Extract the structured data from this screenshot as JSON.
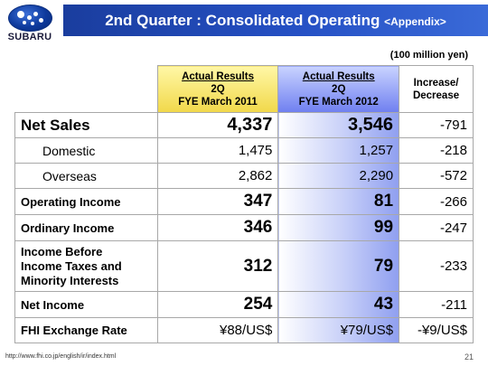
{
  "brand": {
    "name": "SUBARU",
    "logo_icon": "subaru-pleiades-logo",
    "logo_color": "#0e3a9c"
  },
  "header": {
    "title": "2nd Quarter : Consolidated Operating",
    "subtitle": "<Appendix>",
    "bg_color": "#2550c4"
  },
  "unit_note": "(100 million yen)",
  "table": {
    "columns": [
      {
        "line1": "Actual Results",
        "line2": "2Q",
        "line3": "FYE March 2011",
        "bg_color": "#f1d84a"
      },
      {
        "line1": "Actual Results",
        "line2": "2Q",
        "line3": "FYE March 2012",
        "bg_color": "#6f7ff0"
      },
      {
        "line1": "Increase/",
        "line2": "Decrease"
      }
    ],
    "rows": [
      {
        "label": "Net Sales",
        "v2011": "4,337",
        "v2012": "3,546",
        "change": "-791"
      },
      {
        "label": "Domestic",
        "v2011": "1,475",
        "v2012": "1,257",
        "change": "-218"
      },
      {
        "label": "Overseas",
        "v2011": "2,862",
        "v2012": "2,290",
        "change": "-572"
      },
      {
        "label": "Operating Income",
        "v2011": "347",
        "v2012": "81",
        "change": "-266"
      },
      {
        "label": "Ordinary Income",
        "v2011": "346",
        "v2012": "99",
        "change": "-247"
      },
      {
        "label_lines": [
          "Income Before",
          "Income Taxes and",
          "Minority Interests"
        ],
        "v2011": "312",
        "v2012": "79",
        "change": "-233"
      },
      {
        "label": "Net Income",
        "v2011": "254",
        "v2012": "43",
        "change": "-211"
      },
      {
        "label": "FHI Exchange Rate",
        "v2011": "¥88/US$",
        "v2012": "¥79/US$",
        "change": "-¥9/US$"
      }
    ],
    "change_color": "#e0201a"
  },
  "footer": {
    "url": "http://www.fhi.co.jp/english/ir/index.html",
    "page": "21"
  }
}
